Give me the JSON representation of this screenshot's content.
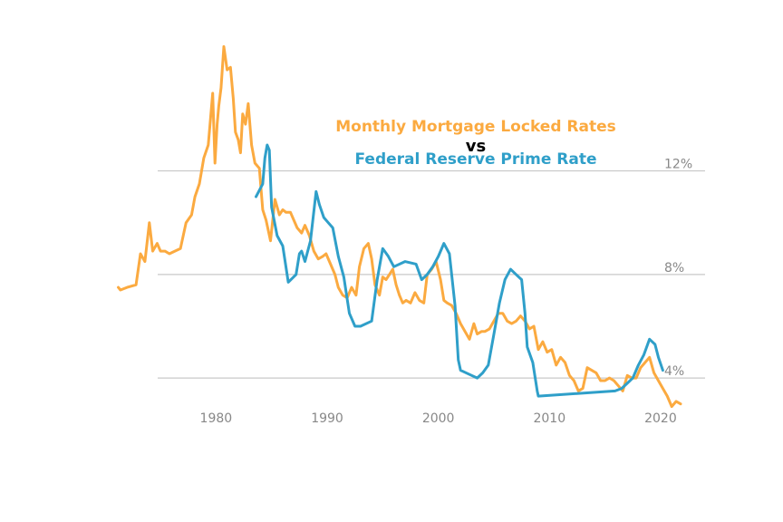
{
  "chart_data": {
    "type": "line",
    "title_line1": "Monthly Mortgage Locked Rates",
    "title_connector": "vs",
    "title_line2": "Federal Reserve Prime Rate",
    "xlabel": "",
    "ylabel": "",
    "xlim": [
      1971,
      2024
    ],
    "ylim": [
      2.5,
      17.2
    ],
    "grid": true,
    "x_ticks": [
      {
        "value": 1980,
        "label": "1980"
      },
      {
        "value": 1990,
        "label": "1990"
      },
      {
        "value": 2000,
        "label": "2000"
      },
      {
        "value": 2010,
        "label": "2010"
      },
      {
        "value": 2020,
        "label": "2020"
      }
    ],
    "y_ticks": [
      {
        "value": 4,
        "label": "4%"
      },
      {
        "value": 8,
        "label": "8%"
      },
      {
        "value": 12,
        "label": "12%"
      }
    ],
    "colors": {
      "mortgage": "#FBAA40",
      "prime": "#2F9FC9",
      "grid": "#C8C8C8",
      "ticks": "#888888"
    },
    "series": [
      {
        "name": "Monthly Mortgage Locked Rates",
        "color": "#FBAA40",
        "x": [
          1971.2,
          1971.4,
          1972.0,
          1972.8,
          1973.2,
          1973.6,
          1974.0,
          1974.3,
          1974.7,
          1975.0,
          1975.4,
          1975.8,
          1976.3,
          1976.8,
          1977.3,
          1977.8,
          1978.1,
          1978.5,
          1978.9,
          1979.3,
          1979.7,
          1979.9,
          1980.1,
          1980.25,
          1980.45,
          1980.7,
          1981.0,
          1981.3,
          1981.55,
          1981.75,
          1982.0,
          1982.2,
          1982.4,
          1982.65,
          1982.9,
          1983.2,
          1983.5,
          1983.9,
          1984.2,
          1984.5,
          1984.9,
          1985.3,
          1985.7,
          1986.0,
          1986.3,
          1986.7,
          1987.0,
          1987.3,
          1987.7,
          1988.0,
          1988.4,
          1988.8,
          1989.2,
          1989.6,
          1989.9,
          1990.3,
          1990.7,
          1991.0,
          1991.4,
          1991.8,
          1992.2,
          1992.6,
          1992.9,
          1993.3,
          1993.7,
          1994.0,
          1994.3,
          1994.7,
          1995.0,
          1995.3,
          1995.6,
          1995.9,
          1996.2,
          1996.5,
          1996.8,
          1997.1,
          1997.5,
          1997.9,
          1998.3,
          1998.7,
          1999.0,
          1999.4,
          1999.8,
          2000.2,
          2000.5,
          2000.8,
          2001.2,
          2001.6,
          2002.0,
          2002.4,
          2002.8,
          2003.2,
          2003.5,
          2003.9,
          2004.2,
          2004.6,
          2005.0,
          2005.4,
          2005.8,
          2006.2,
          2006.6,
          2007.0,
          2007.4,
          2007.8,
          2008.2,
          2008.6,
          2009.0,
          2009.4,
          2009.8,
          2010.2,
          2010.6,
          2011.0,
          2011.4,
          2011.8,
          2012.2,
          2012.6,
          2013.0,
          2013.4,
          2013.8,
          2014.2,
          2014.6,
          2015.0,
          2015.4,
          2015.8,
          2016.2,
          2016.6,
          2017.0,
          2017.4,
          2017.8,
          2018.2,
          2018.6,
          2019.0,
          2019.4,
          2019.8,
          2020.2,
          2020.6,
          2021.0,
          2021.4,
          2021.8
        ],
        "values": [
          7.5,
          7.4,
          7.5,
          7.6,
          8.8,
          8.5,
          10.0,
          8.9,
          9.2,
          8.9,
          8.9,
          8.8,
          8.9,
          9.0,
          10.0,
          10.3,
          11.0,
          11.5,
          12.5,
          13.0,
          15.0,
          12.3,
          13.8,
          14.5,
          15.2,
          16.8,
          15.9,
          16.0,
          14.8,
          13.5,
          13.2,
          12.7,
          14.2,
          13.8,
          14.6,
          13.0,
          12.3,
          12.1,
          10.5,
          10.1,
          9.3,
          10.9,
          10.3,
          10.5,
          10.4,
          10.4,
          10.1,
          9.8,
          9.6,
          9.9,
          9.5,
          8.9,
          8.6,
          8.7,
          8.8,
          8.4,
          8.0,
          7.5,
          7.2,
          7.1,
          7.5,
          7.2,
          8.3,
          9.0,
          9.2,
          8.6,
          7.6,
          7.2,
          7.9,
          7.8,
          8.0,
          8.2,
          7.6,
          7.2,
          6.9,
          7.0,
          6.9,
          7.3,
          7.0,
          6.9,
          8.0,
          8.2,
          8.5,
          7.8,
          7.0,
          6.9,
          6.8,
          6.5,
          6.1,
          5.8,
          5.5,
          6.1,
          5.7,
          5.8,
          5.8,
          5.9,
          6.2,
          6.5,
          6.5,
          6.2,
          6.1,
          6.2,
          6.4,
          6.2,
          5.9,
          6.0,
          5.1,
          5.4,
          5.0,
          5.1,
          4.5,
          4.8,
          4.6,
          4.1,
          3.9,
          3.5,
          3.6,
          4.4,
          4.3,
          4.2,
          3.9,
          3.9,
          4.0,
          3.9,
          3.7,
          3.5,
          4.1,
          4.0,
          4.0,
          4.4,
          4.6,
          4.8,
          4.2,
          3.9,
          3.6,
          3.3,
          2.9,
          3.1,
          3.0
        ]
      },
      {
        "name": "Federal Reserve Prime Rate",
        "color": "#2F9FC9",
        "x": [
          1983.6,
          1984.2,
          1984.4,
          1984.6,
          1984.8,
          1985.0,
          1985.5,
          1986.0,
          1986.5,
          1987.2,
          1987.5,
          1987.7,
          1988.0,
          1988.5,
          1989.0,
          1989.3,
          1989.7,
          1990.1,
          1990.5,
          1991.0,
          1991.5,
          1992.0,
          1992.5,
          1993.0,
          1994.0,
          1994.5,
          1995.0,
          1995.5,
          1996.0,
          1997.0,
          1998.0,
          1998.5,
          1999.0,
          1999.5,
          2000.0,
          2000.5,
          2001.0,
          2001.5,
          2001.8,
          2002.0,
          2003.0,
          2003.5,
          2004.0,
          2004.5,
          2005.0,
          2005.5,
          2006.0,
          2006.5,
          2007.0,
          2007.5,
          2007.8,
          2008.0,
          2008.5,
          2008.9,
          2009.0,
          2015.9,
          2016.5,
          2017.0,
          2017.5,
          2018.0,
          2018.5,
          2019.0,
          2019.5,
          2019.8,
          2020.2
        ],
        "values": [
          11.0,
          11.5,
          12.5,
          13.0,
          12.8,
          10.6,
          9.5,
          9.1,
          7.7,
          8.0,
          8.8,
          8.9,
          8.5,
          9.3,
          11.2,
          10.7,
          10.2,
          10.0,
          9.8,
          8.7,
          7.9,
          6.5,
          6.0,
          6.0,
          6.2,
          7.8,
          9.0,
          8.7,
          8.3,
          8.5,
          8.4,
          7.8,
          8.0,
          8.3,
          8.7,
          9.2,
          8.8,
          6.8,
          4.7,
          4.3,
          4.1,
          4.0,
          4.2,
          4.5,
          5.7,
          6.9,
          7.8,
          8.2,
          8.0,
          7.8,
          6.5,
          5.2,
          4.6,
          3.5,
          3.3,
          3.5,
          3.6,
          3.8,
          4.0,
          4.5,
          4.9,
          5.5,
          5.3,
          4.8,
          4.3
        ]
      }
    ]
  }
}
